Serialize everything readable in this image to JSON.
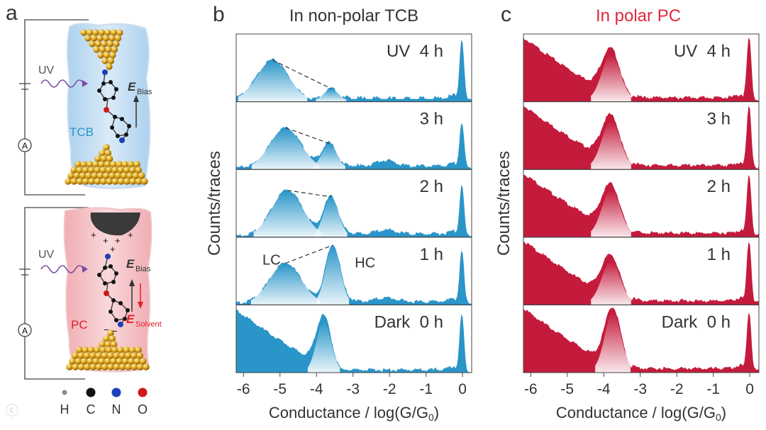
{
  "panel_a": {
    "letter": "a",
    "top": {
      "uv": "UV",
      "solvent": "TCB",
      "field": "E",
      "field_sub": "Bias",
      "meter": "A"
    },
    "bottom": {
      "uv": "UV",
      "solvent": "PC",
      "field": "E",
      "field_sub": "Bias",
      "field2": "E",
      "field2_sub": "Solvent",
      "meter": "A"
    },
    "legend": [
      {
        "label": "H",
        "color": "#8a8a8a"
      },
      {
        "label": "C",
        "color": "#111111"
      },
      {
        "label": "N",
        "color": "#1f3fb8"
      },
      {
        "label": "O",
        "color": "#d01a1a"
      }
    ],
    "colors": {
      "tcb_bg": "#bfdcf3",
      "pc_bg": "#f2b9bd",
      "gold": "#e0a81c",
      "uv": "#7a4aa8",
      "field2": "#e0202a"
    }
  },
  "chart_data": [
    {
      "type": "area",
      "panel_letter": "b",
      "title": "In non-polar TCB",
      "title_color": "#333333",
      "color": "#2a95c9",
      "xlabel": "Conductance / log(G/G",
      "xlabel_sub": "0",
      "xlabel_end": ")",
      "ylabel": "Counts/traces",
      "xlim": [
        -6.2,
        0.25
      ],
      "xticks": [
        -6,
        -5,
        -4,
        -3,
        -2,
        -1,
        0
      ],
      "xtick_labels": [
        "-6",
        "-5",
        "-4",
        "-3",
        "-2",
        "-1",
        "0"
      ],
      "panels": [
        {
          "label": "UV  4 h",
          "peaks": [
            [
              -5.2,
              0.62,
              0.43
            ],
            [
              -3.6,
              0.18,
              0.19
            ]
          ],
          "base": 0.02,
          "tail": 0.0,
          "spike": 0.92,
          "bump": [
            -2.1,
            0.0
          ],
          "dash": [
            [
              -5.2,
              0.62
            ],
            [
              -3.6,
              0.18
            ]
          ]
        },
        {
          "label": "3 h",
          "peaks": [
            [
              -4.85,
              0.62,
              0.42
            ],
            [
              -3.65,
              0.38,
              0.2
            ]
          ],
          "base": 0.02,
          "tail": 0.0,
          "spike": 0.68,
          "bump": [
            -2.1,
            0.09
          ],
          "dash": [
            [
              -4.85,
              0.62
            ],
            [
              -3.65,
              0.38
            ]
          ]
        },
        {
          "label": "2 h",
          "peaks": [
            [
              -4.8,
              0.7,
              0.42
            ],
            [
              -3.6,
              0.6,
              0.2
            ]
          ],
          "base": 0.02,
          "tail": 0.0,
          "spike": 0.75,
          "bump": [
            -2.1,
            0.06
          ],
          "dash": [
            [
              -4.8,
              0.7
            ],
            [
              -3.6,
              0.6
            ]
          ]
        },
        {
          "label": "1 h",
          "peaks": [
            [
              -4.85,
              0.62,
              0.43
            ],
            [
              -3.55,
              0.9,
              0.2
            ]
          ],
          "base": 0.02,
          "tail": 0.0,
          "spike": 0.78,
          "bump": [
            -2.1,
            0.06
          ],
          "dash": [
            [
              -4.85,
              0.62
            ],
            [
              -3.55,
              0.9
            ]
          ],
          "annotations": [
            {
              "text": "LC",
              "x": -5.48,
              "y": 0.62
            },
            {
              "text": "HC",
              "x": -2.95,
              "y": 0.58
            }
          ]
        },
        {
          "label": "Dark  0 h",
          "peaks": [
            [
              -3.8,
              0.78,
              0.2
            ]
          ],
          "base": 0.01,
          "tail": 1.0,
          "spike": 0.85,
          "bump": [
            -2.1,
            0.0
          ]
        }
      ]
    },
    {
      "type": "area",
      "panel_letter": "c",
      "title": "In polar PC",
      "title_color": "#e0283c",
      "color": "#c41b3c",
      "xlabel": "Conductance / log(G/G",
      "xlabel_sub": "0",
      "xlabel_end": ")",
      "ylabel": "Counts/traces",
      "xlim": [
        -6.2,
        0.25
      ],
      "xticks": [
        -6,
        -5,
        -4,
        -3,
        -2,
        -1,
        0
      ],
      "xtick_labels": [
        "-6",
        "-5",
        "-4",
        "-3",
        "-2",
        "-1",
        "0"
      ],
      "panels": [
        {
          "label": "UV  4 h",
          "peaks": [
            [
              -3.8,
              0.7,
              0.25
            ]
          ],
          "base": 0.03,
          "tail": 1.0,
          "spike": 0.92,
          "bump": [
            -2.1,
            0.0
          ]
        },
        {
          "label": "3 h",
          "peaks": [
            [
              -3.8,
              0.72,
              0.25
            ]
          ],
          "base": 0.03,
          "tail": 1.0,
          "spike": 0.92,
          "bump": [
            -2.1,
            0.0
          ]
        },
        {
          "label": "2 h",
          "peaks": [
            [
              -3.8,
              0.7,
              0.25
            ]
          ],
          "base": 0.03,
          "tail": 1.0,
          "spike": 0.9,
          "bump": [
            -2.1,
            0.0
          ]
        },
        {
          "label": "1 h",
          "peaks": [
            [
              -3.8,
              0.65,
              0.25
            ]
          ],
          "base": 0.03,
          "tail": 1.0,
          "spike": 0.92,
          "bump": [
            -2.1,
            0.0
          ]
        },
        {
          "label": "Dark  0 h",
          "peaks": [
            [
              -3.75,
              0.9,
              0.22
            ]
          ],
          "base": 0.03,
          "tail": 1.0,
          "spike": 0.88,
          "bump": [
            -2.1,
            0.0
          ]
        }
      ]
    }
  ]
}
